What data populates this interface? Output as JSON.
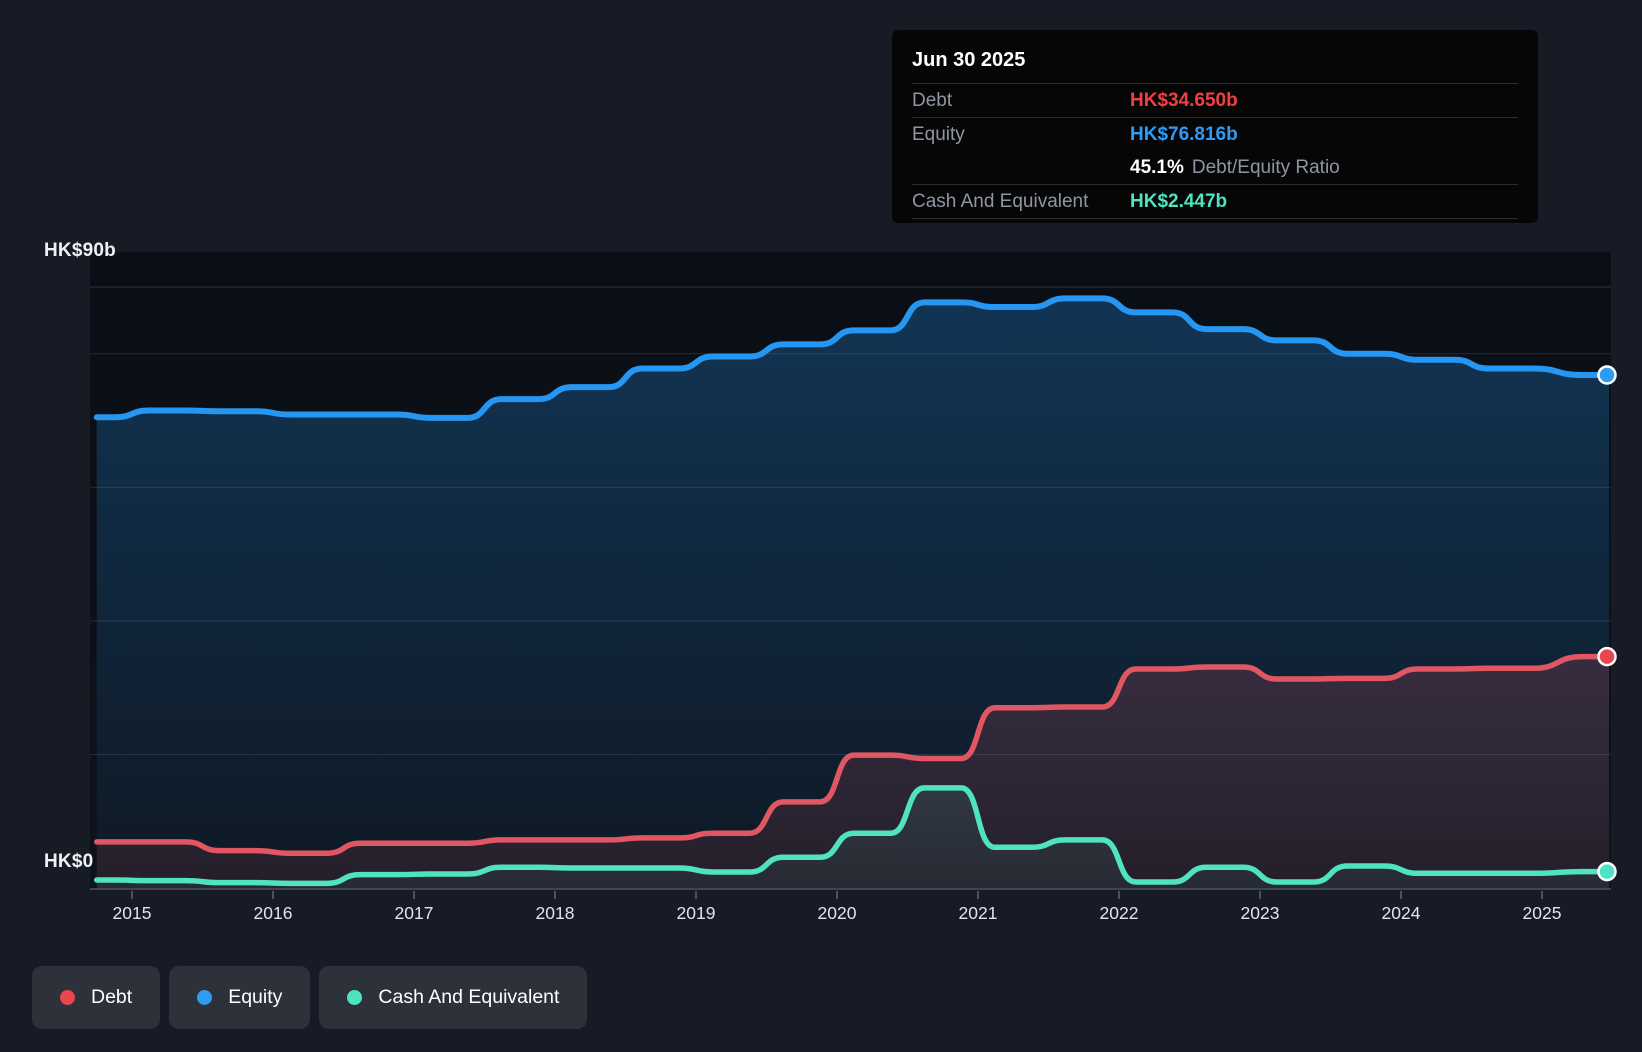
{
  "tooltip": {
    "title": "Jun 30 2025",
    "debt_label": "Debt",
    "debt_value": "HK$34.650b",
    "equity_label": "Equity",
    "equity_value": "HK$76.816b",
    "ratio_value": "45.1%",
    "ratio_label": "Debt/Equity Ratio",
    "cash_label": "Cash And Equivalent",
    "cash_value": "HK$2.447b"
  },
  "y_axis": {
    "top": "HK$90b",
    "zero": "HK$0"
  },
  "x_ticks": [
    "2015",
    "2016",
    "2017",
    "2018",
    "2019",
    "2020",
    "2021",
    "2022",
    "2023",
    "2024",
    "2025"
  ],
  "legend": {
    "debt": "Debt",
    "equity": "Equity",
    "cash": "Cash And Equivalent"
  },
  "colors": {
    "debt_line": "#e05663",
    "debt_dot": "#e8484d",
    "debt_text": "#ef4141",
    "equity_line": "#2596f2",
    "equity_dot": "#2e9bf5",
    "equity_text": "#2e9bf5",
    "cash_line": "#4fe3c1",
    "cash_dot": "#4fe3c1",
    "cash_text": "#4fe3c1",
    "background": "#171b25",
    "tooltip_bg": "#060607",
    "legend_pill_bg": "#2c313a"
  },
  "chart_data": {
    "type": "area",
    "title": "Debt to Equity History and Analysis",
    "unit": "HK$ billions",
    "ylim": [
      0,
      90
    ],
    "y_gridlines_b": [
      90,
      80,
      60,
      40,
      20
    ],
    "grid_on": true,
    "legend_position": "bottom-left",
    "x_tick_years": [
      2015,
      2016,
      2017,
      2018,
      2019,
      2020,
      2021,
      2022,
      2023,
      2024,
      2025
    ],
    "x_years": [
      2014.75,
      2015.25,
      2015.75,
      2016.25,
      2016.75,
      2017.25,
      2017.75,
      2018.25,
      2018.75,
      2019.25,
      2019.75,
      2020.25,
      2020.75,
      2021.25,
      2021.75,
      2022.25,
      2022.75,
      2023.25,
      2023.75,
      2024.25,
      2024.75,
      2025.5
    ],
    "series": [
      {
        "name": "Equity",
        "color": "#2596f2",
        "dot": "#2e9bf5",
        "fill_from": "rgba(37,150,242,0.30)",
        "fill_to": "rgba(37,150,242,0.04)",
        "line_width": 6,
        "values": [
          70.5,
          71.5,
          71.4,
          70.9,
          70.9,
          70.4,
          73.2,
          75.0,
          77.8,
          79.6,
          81.4,
          83.5,
          87.7,
          87.0,
          88.3,
          86.2,
          83.7,
          82.0,
          80.0,
          79.1,
          77.8,
          76.816
        ]
      },
      {
        "name": "Debt",
        "color": "#e05663",
        "dot": "#e8484d",
        "fill_from": "rgba(224,86,99,0.34)",
        "fill_to": "rgba(224,86,99,0.10)",
        "line_width": 5.5,
        "values": [
          6.9,
          6.9,
          5.6,
          5.2,
          6.7,
          6.7,
          7.2,
          7.2,
          7.5,
          8.2,
          12.9,
          19.9,
          19.4,
          27.0,
          27.1,
          32.8,
          33.1,
          31.3,
          31.4,
          32.8,
          32.9,
          34.65
        ]
      },
      {
        "name": "Cash And Equivalent",
        "color": "#4fe3c1",
        "dot": "#4fe3c1",
        "fill_from": "rgba(79,227,193,0.30)",
        "fill_to": "rgba(79,227,193,0.06)",
        "line_width": 5.5,
        "values": [
          1.2,
          1.1,
          0.8,
          0.7,
          2.0,
          2.1,
          3.1,
          3.0,
          3.0,
          2.4,
          4.6,
          8.2,
          15.0,
          6.1,
          7.2,
          0.9,
          3.1,
          0.9,
          3.3,
          2.2,
          2.2,
          2.447
        ]
      }
    ],
    "last_point_labels": {
      "Equity": "HK$76.816b",
      "Debt": "HK$34.650b",
      "Cash And Equivalent": "HK$2.447b"
    }
  }
}
